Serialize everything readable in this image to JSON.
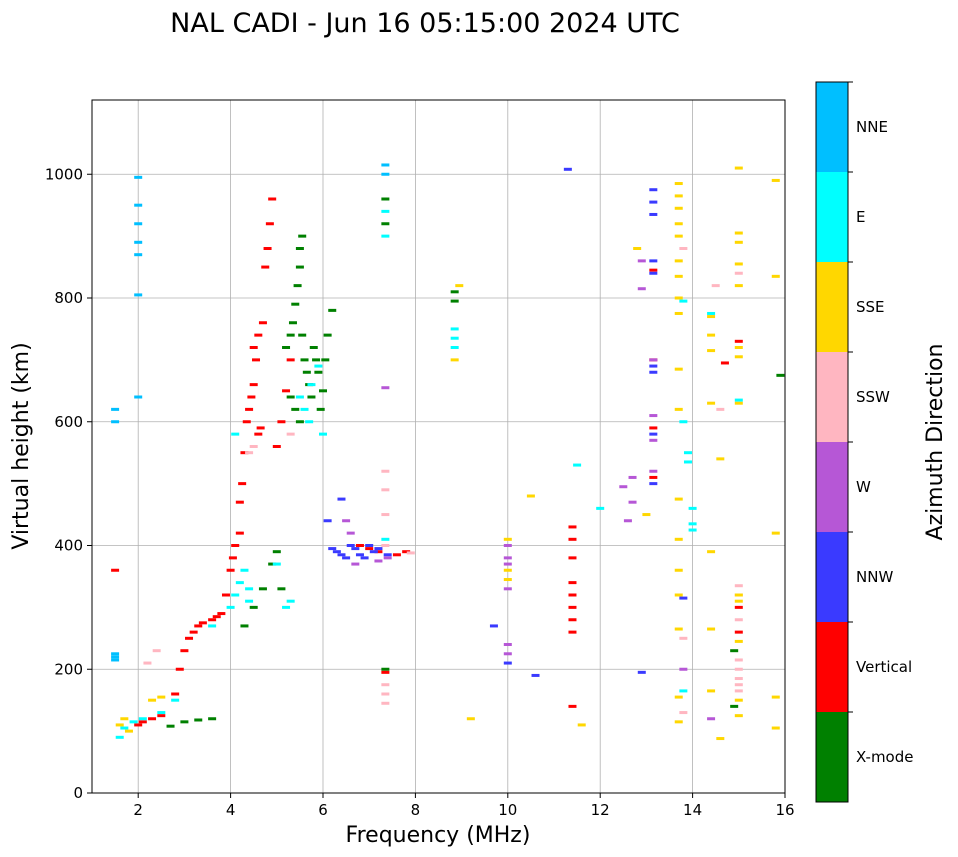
{
  "chart_data": {
    "type": "scatter",
    "title": "NAL CADI - Jun 16 05:15:00 2024 UTC",
    "xlabel": "Frequency (MHz)",
    "ylabel": "Virtual height (km)",
    "xlim": [
      1,
      16
    ],
    "ylim": [
      0,
      1120
    ],
    "xticks": [
      2,
      4,
      6,
      8,
      10,
      12,
      14,
      16
    ],
    "yticks": [
      0,
      200,
      400,
      600,
      800,
      1000
    ],
    "grid": true,
    "colorbar": {
      "label": "Azimuth Direction",
      "categories": [
        {
          "name": "X-mode",
          "color": "#008000"
        },
        {
          "name": "Vertical",
          "color": "#ff0000"
        },
        {
          "name": "NNW",
          "color": "#3a3aff"
        },
        {
          "name": "W",
          "color": "#b657d6"
        },
        {
          "name": "SSW",
          "color": "#ffb6c1"
        },
        {
          "name": "SSE",
          "color": "#ffd700"
        },
        {
          "name": "E",
          "color": "#00ffff"
        },
        {
          "name": "NNE",
          "color": "#00bfff"
        }
      ]
    },
    "series": [
      {
        "name": "X-mode",
        "points": [
          [
            2.7,
            108
          ],
          [
            3.0,
            115
          ],
          [
            3.3,
            118
          ],
          [
            3.6,
            120
          ],
          [
            4.3,
            270
          ],
          [
            4.5,
            300
          ],
          [
            4.7,
            330
          ],
          [
            4.9,
            370
          ],
          [
            5.0,
            390
          ],
          [
            5.1,
            330
          ],
          [
            5.2,
            720
          ],
          [
            5.3,
            740
          ],
          [
            5.35,
            760
          ],
          [
            5.4,
            790
          ],
          [
            5.45,
            820
          ],
          [
            5.5,
            850
          ],
          [
            5.5,
            880
          ],
          [
            5.55,
            900
          ],
          [
            5.6,
            700
          ],
          [
            5.65,
            680
          ],
          [
            5.7,
            660
          ],
          [
            5.75,
            640
          ],
          [
            5.8,
            720
          ],
          [
            5.85,
            700
          ],
          [
            5.9,
            680
          ],
          [
            5.95,
            620
          ],
          [
            6.0,
            650
          ],
          [
            6.05,
            700
          ],
          [
            6.1,
            740
          ],
          [
            6.2,
            780
          ],
          [
            5.3,
            640
          ],
          [
            5.4,
            620
          ],
          [
            5.5,
            600
          ],
          [
            5.55,
            740
          ],
          [
            7.35,
            960
          ],
          [
            7.35,
            920
          ],
          [
            7.35,
            200
          ],
          [
            8.85,
            810
          ],
          [
            8.85,
            795
          ],
          [
            14.9,
            140
          ],
          [
            14.9,
            230
          ],
          [
            15.9,
            675
          ]
        ]
      },
      {
        "name": "Vertical",
        "points": [
          [
            1.5,
            360
          ],
          [
            2.0,
            110
          ],
          [
            2.1,
            115
          ],
          [
            2.3,
            120
          ],
          [
            2.5,
            125
          ],
          [
            2.8,
            160
          ],
          [
            2.9,
            200
          ],
          [
            3.0,
            230
          ],
          [
            3.1,
            250
          ],
          [
            3.2,
            260
          ],
          [
            3.3,
            270
          ],
          [
            3.4,
            275
          ],
          [
            3.6,
            280
          ],
          [
            3.7,
            285
          ],
          [
            3.8,
            290
          ],
          [
            3.9,
            320
          ],
          [
            4.0,
            360
          ],
          [
            4.05,
            380
          ],
          [
            4.1,
            400
          ],
          [
            4.2,
            420
          ],
          [
            4.2,
            470
          ],
          [
            4.25,
            500
          ],
          [
            4.3,
            550
          ],
          [
            4.35,
            600
          ],
          [
            4.4,
            620
          ],
          [
            4.45,
            640
          ],
          [
            4.5,
            660
          ],
          [
            4.55,
            700
          ],
          [
            4.6,
            580
          ],
          [
            4.65,
            590
          ],
          [
            4.7,
            760
          ],
          [
            4.75,
            850
          ],
          [
            4.8,
            880
          ],
          [
            4.85,
            920
          ],
          [
            4.9,
            960
          ],
          [
            5.0,
            560
          ],
          [
            5.1,
            600
          ],
          [
            5.2,
            650
          ],
          [
            5.3,
            700
          ],
          [
            4.6,
            740
          ],
          [
            4.5,
            720
          ],
          [
            6.8,
            400
          ],
          [
            7.0,
            395
          ],
          [
            7.2,
            390
          ],
          [
            7.6,
            385
          ],
          [
            7.8,
            390
          ],
          [
            7.35,
            195
          ],
          [
            11.4,
            430
          ],
          [
            11.4,
            410
          ],
          [
            11.4,
            380
          ],
          [
            11.4,
            340
          ],
          [
            11.4,
            320
          ],
          [
            11.4,
            300
          ],
          [
            11.4,
            280
          ],
          [
            11.4,
            260
          ],
          [
            11.4,
            140
          ],
          [
            13.15,
            845
          ],
          [
            13.15,
            590
          ],
          [
            13.15,
            510
          ],
          [
            13.15,
            700
          ],
          [
            15.0,
            260
          ],
          [
            15.0,
            300
          ],
          [
            15.0,
            730
          ],
          [
            14.7,
            695
          ]
        ]
      },
      {
        "name": "NNW",
        "points": [
          [
            6.2,
            395
          ],
          [
            6.3,
            390
          ],
          [
            6.4,
            385
          ],
          [
            6.5,
            380
          ],
          [
            6.6,
            400
          ],
          [
            6.7,
            395
          ],
          [
            6.8,
            385
          ],
          [
            6.9,
            380
          ],
          [
            7.0,
            400
          ],
          [
            7.1,
            390
          ],
          [
            7.2,
            395
          ],
          [
            7.4,
            385
          ],
          [
            6.4,
            475
          ],
          [
            6.1,
            440
          ],
          [
            13.15,
            975
          ],
          [
            13.15,
            955
          ],
          [
            13.15,
            935
          ],
          [
            13.15,
            860
          ],
          [
            13.15,
            840
          ],
          [
            13.15,
            690
          ],
          [
            13.15,
            680
          ],
          [
            13.15,
            580
          ],
          [
            13.15,
            500
          ],
          [
            11.3,
            1008
          ],
          [
            13.8,
            315
          ],
          [
            12.9,
            195
          ],
          [
            10.0,
            210
          ],
          [
            10.6,
            190
          ],
          [
            9.7,
            270
          ]
        ]
      },
      {
        "name": "W",
        "points": [
          [
            6.5,
            440
          ],
          [
            6.6,
            420
          ],
          [
            6.7,
            370
          ],
          [
            7.2,
            375
          ],
          [
            7.4,
            380
          ],
          [
            10.0,
            400
          ],
          [
            10.0,
            380
          ],
          [
            10.0,
            370
          ],
          [
            10.0,
            330
          ],
          [
            10.0,
            240
          ],
          [
            10.0,
            225
          ],
          [
            12.6,
            440
          ],
          [
            12.7,
            470
          ],
          [
            12.7,
            510
          ],
          [
            12.5,
            495
          ],
          [
            12.9,
            860
          ],
          [
            12.9,
            815
          ],
          [
            13.15,
            610
          ],
          [
            13.15,
            570
          ],
          [
            13.15,
            520
          ],
          [
            13.15,
            700
          ],
          [
            7.35,
            655
          ],
          [
            14.4,
            120
          ],
          [
            13.8,
            200
          ]
        ]
      },
      {
        "name": "SSW",
        "points": [
          [
            2.2,
            210
          ],
          [
            2.4,
            230
          ],
          [
            4.4,
            550
          ],
          [
            4.5,
            560
          ],
          [
            5.3,
            580
          ],
          [
            7.35,
            520
          ],
          [
            7.35,
            490
          ],
          [
            7.35,
            450
          ],
          [
            7.35,
            400
          ],
          [
            7.35,
            175
          ],
          [
            7.35,
            160
          ],
          [
            7.35,
            145
          ],
          [
            7.9,
            388
          ],
          [
            13.8,
            250
          ],
          [
            13.8,
            130
          ],
          [
            13.8,
            880
          ],
          [
            15.0,
            335
          ],
          [
            15.0,
            320
          ],
          [
            15.0,
            280
          ],
          [
            15.0,
            215
          ],
          [
            15.0,
            200
          ],
          [
            15.0,
            185
          ],
          [
            15.0,
            175
          ],
          [
            15.0,
            165
          ],
          [
            15.0,
            840
          ],
          [
            14.5,
            820
          ],
          [
            14.6,
            620
          ]
        ]
      },
      {
        "name": "SSE",
        "points": [
          [
            1.6,
            110
          ],
          [
            1.7,
            120
          ],
          [
            1.8,
            100
          ],
          [
            2.3,
            150
          ],
          [
            2.5,
            155
          ],
          [
            8.95,
            820
          ],
          [
            8.85,
            700
          ],
          [
            10.0,
            410
          ],
          [
            10.0,
            360
          ],
          [
            10.0,
            345
          ],
          [
            10.5,
            480
          ],
          [
            11.6,
            110
          ],
          [
            13.0,
            450
          ],
          [
            12.8,
            880
          ],
          [
            13.7,
            985
          ],
          [
            13.7,
            965
          ],
          [
            13.7,
            945
          ],
          [
            13.7,
            920
          ],
          [
            13.7,
            900
          ],
          [
            13.7,
            860
          ],
          [
            13.7,
            835
          ],
          [
            13.7,
            800
          ],
          [
            13.7,
            775
          ],
          [
            13.7,
            685
          ],
          [
            13.7,
            620
          ],
          [
            13.7,
            475
          ],
          [
            13.7,
            410
          ],
          [
            13.7,
            360
          ],
          [
            13.7,
            320
          ],
          [
            13.7,
            265
          ],
          [
            13.7,
            155
          ],
          [
            13.7,
            115
          ],
          [
            14.4,
            770
          ],
          [
            14.4,
            740
          ],
          [
            14.4,
            715
          ],
          [
            14.4,
            630
          ],
          [
            14.4,
            390
          ],
          [
            14.4,
            265
          ],
          [
            14.4,
            165
          ],
          [
            14.6,
            540
          ],
          [
            14.6,
            88
          ],
          [
            15.0,
            1010
          ],
          [
            15.0,
            905
          ],
          [
            15.0,
            890
          ],
          [
            15.0,
            855
          ],
          [
            15.0,
            820
          ],
          [
            15.0,
            630
          ],
          [
            15.0,
            720
          ],
          [
            15.0,
            705
          ],
          [
            15.0,
            320
          ],
          [
            15.0,
            310
          ],
          [
            15.0,
            245
          ],
          [
            15.0,
            150
          ],
          [
            15.0,
            125
          ],
          [
            15.8,
            990
          ],
          [
            15.8,
            835
          ],
          [
            15.8,
            420
          ],
          [
            15.8,
            155
          ],
          [
            15.8,
            105
          ],
          [
            9.2,
            120
          ]
        ]
      },
      {
        "name": "E",
        "points": [
          [
            1.6,
            90
          ],
          [
            1.7,
            105
          ],
          [
            1.9,
            115
          ],
          [
            2.1,
            120
          ],
          [
            2.5,
            130
          ],
          [
            2.8,
            150
          ],
          [
            3.6,
            270
          ],
          [
            4.0,
            300
          ],
          [
            4.1,
            320
          ],
          [
            4.2,
            340
          ],
          [
            4.3,
            360
          ],
          [
            4.4,
            310
          ],
          [
            4.4,
            330
          ],
          [
            5.0,
            370
          ],
          [
            5.2,
            300
          ],
          [
            5.3,
            310
          ],
          [
            5.5,
            640
          ],
          [
            5.6,
            620
          ],
          [
            5.7,
            600
          ],
          [
            5.75,
            660
          ],
          [
            5.9,
            690
          ],
          [
            6.0,
            580
          ],
          [
            4.1,
            580
          ],
          [
            7.35,
            940
          ],
          [
            7.35,
            900
          ],
          [
            7.35,
            410
          ],
          [
            8.85,
            750
          ],
          [
            8.85,
            735
          ],
          [
            8.85,
            720
          ],
          [
            11.5,
            530
          ],
          [
            12.0,
            460
          ],
          [
            13.8,
            795
          ],
          [
            13.8,
            600
          ],
          [
            13.8,
            165
          ],
          [
            13.9,
            550
          ],
          [
            13.9,
            535
          ],
          [
            14.0,
            460
          ],
          [
            14.0,
            425
          ],
          [
            14.0,
            435
          ],
          [
            15.0,
            635
          ],
          [
            14.4,
            775
          ]
        ]
      },
      {
        "name": "NNE",
        "points": [
          [
            1.5,
            620
          ],
          [
            1.5,
            600
          ],
          [
            1.5,
            225
          ],
          [
            1.5,
            220
          ],
          [
            1.5,
            215
          ],
          [
            2.0,
            995
          ],
          [
            2.0,
            950
          ],
          [
            2.0,
            920
          ],
          [
            2.0,
            890
          ],
          [
            2.0,
            870
          ],
          [
            2.0,
            640
          ],
          [
            2.0,
            805
          ],
          [
            7.35,
            1015
          ],
          [
            7.35,
            1000
          ]
        ]
      }
    ]
  }
}
